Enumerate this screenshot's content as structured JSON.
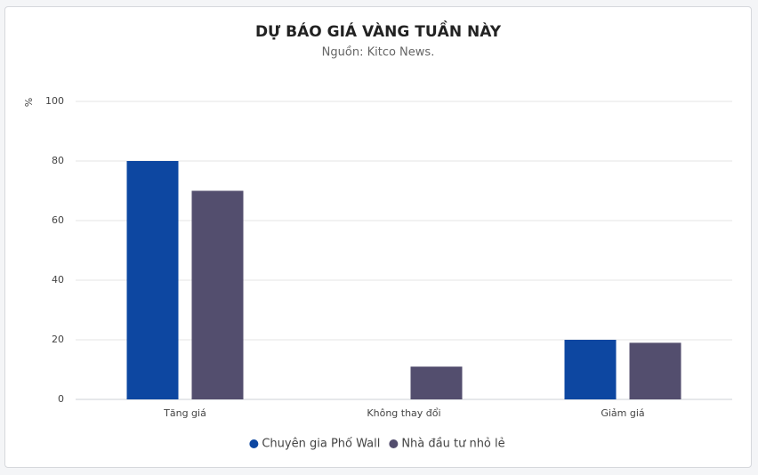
{
  "chart_data": {
    "type": "bar",
    "title": "DỰ BÁO GIÁ VÀNG TUẦN NÀY",
    "subtitle": "Nguồn: Kitco News.",
    "y_label": "%",
    "categories": [
      "Tăng giá",
      "Không thay đổi",
      "Giảm giá"
    ],
    "series": [
      {
        "name": "Chuyên gia Phố Wall",
        "color": "#0d47a1",
        "values": [
          80,
          0,
          20
        ]
      },
      {
        "name": "Nhà đầu tư nhỏ lẻ",
        "color": "#534e6e",
        "values": [
          70,
          11,
          19
        ]
      }
    ],
    "ylim": [
      0,
      100
    ],
    "yticks": [
      0,
      20,
      40,
      60,
      80,
      100
    ],
    "grid": true,
    "legend": "bottom"
  }
}
